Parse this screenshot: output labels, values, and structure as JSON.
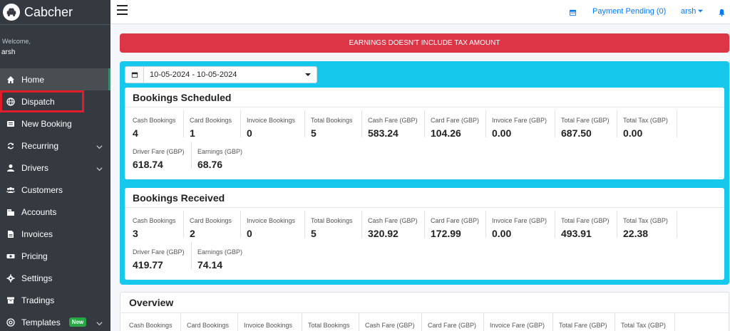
{
  "brand": {
    "name": "Cabcher"
  },
  "user": {
    "welcome": "Welcome,",
    "name": "arsh"
  },
  "sidebar": {
    "items": [
      {
        "label": "Home",
        "icon": "home-icon"
      },
      {
        "label": "Dispatch",
        "icon": "globe-icon"
      },
      {
        "label": "New Booking",
        "icon": "list-icon"
      },
      {
        "label": "Recurring",
        "icon": "repeat-icon"
      },
      {
        "label": "Drivers",
        "icon": "user-icon"
      },
      {
        "label": "Customers",
        "icon": "users-icon"
      },
      {
        "label": "Accounts",
        "icon": "accounts-icon"
      },
      {
        "label": "Invoices",
        "icon": "file-icon"
      },
      {
        "label": "Pricing",
        "icon": "money-icon"
      },
      {
        "label": "Settings",
        "icon": "gear-icon"
      },
      {
        "label": "Tradings",
        "icon": "box-icon"
      },
      {
        "label": "Templates",
        "icon": "at-icon"
      }
    ],
    "templates_badge": "New"
  },
  "topbar": {
    "payment_pending": "Payment Pending (0)",
    "user_menu": "arsh"
  },
  "alert": {
    "text": "EARNINGS DOESN'T INCLUDE TAX AMOUNT"
  },
  "date_range": {
    "value": "10-05-2024 - 10-05-2024"
  },
  "scheduled": {
    "title": "Bookings Scheduled",
    "stats": [
      {
        "label": "Cash Bookings",
        "value": "4"
      },
      {
        "label": "Card Bookings",
        "value": "1"
      },
      {
        "label": "Invoice Bookings",
        "value": "0"
      },
      {
        "label": "Total Bookings",
        "value": "5"
      },
      {
        "label": "Cash Fare (GBP)",
        "value": "583.24"
      },
      {
        "label": "Card Fare (GBP)",
        "value": "104.26"
      },
      {
        "label": "Invoice Fare (GBP)",
        "value": "0.00"
      },
      {
        "label": "Total Fare (GBP)",
        "value": "687.50"
      },
      {
        "label": "Total Tax (GBP)",
        "value": "0.00"
      },
      {
        "label": "Driver Fare (GBP)",
        "value": "618.74"
      },
      {
        "label": "Earnings (GBP)",
        "value": "68.76"
      }
    ]
  },
  "received": {
    "title": "Bookings Received",
    "stats": [
      {
        "label": "Cash Bookings",
        "value": "3"
      },
      {
        "label": "Card Bookings",
        "value": "2"
      },
      {
        "label": "Invoice Bookings",
        "value": "0"
      },
      {
        "label": "Total Bookings",
        "value": "5"
      },
      {
        "label": "Cash Fare (GBP)",
        "value": "320.92"
      },
      {
        "label": "Card Fare (GBP)",
        "value": "172.99"
      },
      {
        "label": "Invoice Fare (GBP)",
        "value": "0.00"
      },
      {
        "label": "Total Fare (GBP)",
        "value": "493.91"
      },
      {
        "label": "Total Tax (GBP)",
        "value": "22.38"
      },
      {
        "label": "Driver Fare (GBP)",
        "value": "419.77"
      },
      {
        "label": "Earnings (GBP)",
        "value": "74.14"
      }
    ]
  },
  "overview": {
    "title": "Overview",
    "labels": [
      "Cash Bookings",
      "Card Bookings",
      "Invoice Bookings",
      "Total Bookings",
      "Cash Fare (GBP)",
      "Card Fare (GBP)",
      "Invoice Fare (GBP)",
      "Total Fare (GBP)",
      "Total Tax (GBP)"
    ]
  },
  "colors": {
    "sidebar_bg": "#343a40",
    "alert_bg": "#dc3545",
    "panel_bg": "#17c8ed",
    "link": "#007bff",
    "badge": "#28a745",
    "highlight": "#e11d2a"
  }
}
